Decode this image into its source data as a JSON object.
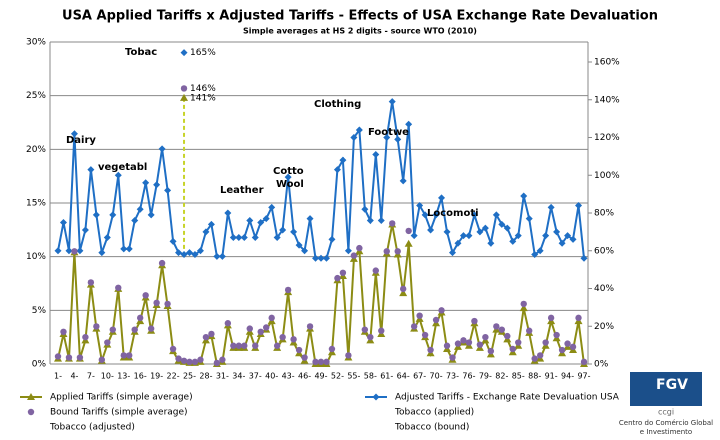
{
  "chart_data": {
    "type": "line",
    "title": "USA Applied Tariffs x Adjusted Tariffs - Effects of USA Exchange Rate Devaluation",
    "subtitle": "Simple averages at HS 2 digits  - source WTO (2010)",
    "categories": [
      "1-",
      null,
      null,
      "4-",
      null,
      null,
      "7-",
      null,
      null,
      "10-",
      null,
      null,
      "13-",
      null,
      null,
      "16-",
      null,
      null,
      "19-",
      null,
      null,
      "22-",
      null,
      null,
      "25-",
      null,
      null,
      "28-",
      null,
      null,
      "31-",
      null,
      null,
      "34-",
      null,
      null,
      "37-",
      null,
      null,
      "40-",
      null,
      null,
      "43-",
      null,
      null,
      "46-",
      null,
      null,
      "49-",
      null,
      null,
      "52-",
      null,
      null,
      "55-",
      null,
      null,
      "58-",
      null,
      null,
      "61-",
      null,
      null,
      "64-",
      null,
      null,
      "67-",
      null,
      null,
      "70-",
      null,
      null,
      "73-",
      null,
      null,
      "76-",
      null,
      null,
      "79-",
      null,
      null,
      "82-",
      null,
      null,
      "85-",
      null,
      null,
      "88-",
      null,
      null,
      "91-",
      null,
      null,
      "94-",
      null,
      null,
      "97-"
    ],
    "ylim": [
      0,
      30
    ],
    "yticks": [
      {
        "value": 0,
        "label": "0%"
      },
      {
        "value": 5,
        "label": "5%"
      },
      {
        "value": 10,
        "label": "10%"
      },
      {
        "value": 15,
        "label": "15%"
      },
      {
        "value": 20,
        "label": "20%"
      },
      {
        "value": 25,
        "label": "25%"
      },
      {
        "value": 30,
        "label": "30%"
      }
    ],
    "y2lim": [
      0,
      170.6
    ],
    "y2ticks": [
      {
        "value": 0,
        "label": "0%"
      },
      {
        "value": 20,
        "label": "20%"
      },
      {
        "value": 40,
        "label": "40%"
      },
      {
        "value": 60,
        "label": "60%"
      },
      {
        "value": 80,
        "label": "80%"
      },
      {
        "value": 100,
        "label": "100%"
      },
      {
        "value": 120,
        "label": "120%"
      },
      {
        "value": 140,
        "label": "140%"
      },
      {
        "value": 160,
        "label": "160%"
      }
    ],
    "grid": true,
    "legend": "bottom",
    "series": [
      {
        "name": "Applied Tariffs (simple average)",
        "color": "#8c8c14",
        "marker": "triangle",
        "line": true,
        "values": [
          0.5,
          2.8,
          0.5,
          10.4,
          0.5,
          2.2,
          7.4,
          3.3,
          0.3,
          1.8,
          3.0,
          7.0,
          0.6,
          0.6,
          3.0,
          4.0,
          6.2,
          3.1,
          5.5,
          9.2,
          5.4,
          1.2,
          0.3,
          0.2,
          0.1,
          0.1,
          0.2,
          2.2,
          2.6,
          0,
          0.2,
          3.6,
          1.5,
          1.5,
          1.5,
          3.0,
          1.5,
          2.8,
          3.2,
          4.0,
          1.5,
          2.3,
          6.7,
          2.0,
          1.0,
          0.3,
          3.3,
          0,
          0,
          0,
          1.1,
          7.8,
          8.2,
          0.6,
          9.8,
          10.5,
          3.0,
          2.2,
          8.5,
          2.8,
          10.3,
          13.0,
          10.2,
          6.6,
          11.2,
          3.3,
          4.2,
          2.5,
          1.0,
          3.8,
          4.8,
          1.4,
          0.4,
          1.6,
          2.0,
          1.7,
          3.8,
          1.5,
          2.2,
          0.9,
          3.2,
          3.0,
          2.3,
          1.1,
          1.7,
          5.2,
          2.9,
          0.3,
          0.5,
          1.7,
          4.0,
          2.4,
          1.0,
          1.6,
          1.3,
          4.0,
          0
        ]
      },
      {
        "name": "Adjusted Tariffs - Exchange Rate Devaluation USA",
        "color": "#1f6fc5",
        "marker": "diamond",
        "line": true,
        "axis": "y2",
        "values": [
          60,
          75,
          60,
          122,
          60,
          71,
          103,
          79,
          59,
          67,
          79,
          100,
          61,
          61,
          76,
          82,
          96,
          79,
          95,
          114,
          92,
          65,
          59,
          58,
          59,
          58,
          60,
          70,
          74,
          57,
          57,
          80,
          67,
          67,
          67,
          76,
          67,
          75,
          77,
          83,
          67,
          71,
          99,
          70,
          63,
          60,
          77,
          56,
          56,
          56,
          66,
          103,
          108,
          60,
          120,
          124,
          82,
          76,
          111,
          76,
          120,
          139,
          119,
          97,
          127,
          68,
          84,
          79,
          71,
          79,
          88,
          70,
          59,
          64,
          68,
          68,
          79,
          70,
          72,
          64,
          79,
          74,
          72,
          65,
          68,
          89,
          77,
          58,
          60,
          68,
          83,
          70,
          64,
          68,
          66,
          84,
          56
        ]
      },
      {
        "name": "Bound Tariffs (simple average)",
        "color": "#8064a2",
        "marker": "circle",
        "line": false,
        "values": [
          0.7,
          3.0,
          0.6,
          10.5,
          0.6,
          2.5,
          7.6,
          3.5,
          0.4,
          2.0,
          3.2,
          7.1,
          0.8,
          0.8,
          3.2,
          4.3,
          6.4,
          3.3,
          5.7,
          9.4,
          5.6,
          1.4,
          0.5,
          0.3,
          0.2,
          0.2,
          0.4,
          2.5,
          2.8,
          0.1,
          0.4,
          3.8,
          1.7,
          1.7,
          1.7,
          3.3,
          1.7,
          3.0,
          3.4,
          4.3,
          1.7,
          2.5,
          6.9,
          2.3,
          1.3,
          0.6,
          3.5,
          0.2,
          0.2,
          0.2,
          1.4,
          8.0,
          8.5,
          0.8,
          10.1,
          10.8,
          3.2,
          2.5,
          8.7,
          3.1,
          10.5,
          13.1,
          10.5,
          7.0,
          12.4,
          3.5,
          4.5,
          2.7,
          1.3,
          4.1,
          5.0,
          1.7,
          0.6,
          1.9,
          2.2,
          2.0,
          4.0,
          1.8,
          2.5,
          1.2,
          3.5,
          3.2,
          2.6,
          1.4,
          2.0,
          5.6,
          3.1,
          0.5,
          0.8,
          2.0,
          4.3,
          2.7,
          1.3,
          1.9,
          1.6,
          4.3,
          0.2
        ]
      },
      {
        "name": "Tobacco (applied)",
        "color": "#8c8c14",
        "marker": "triangle",
        "line": false,
        "axis": "y2",
        "values": [
          null,
          null,
          null,
          null,
          null,
          null,
          null,
          null,
          null,
          null,
          null,
          null,
          null,
          null,
          null,
          null,
          null,
          null,
          null,
          null,
          null,
          null,
          null,
          141,
          null,
          null,
          null,
          null,
          null,
          null,
          null,
          null,
          null,
          null,
          null,
          null,
          null,
          null,
          null,
          null,
          null,
          null,
          null,
          null,
          null,
          null,
          null,
          null,
          null,
          null,
          null,
          null,
          null,
          null,
          null,
          null,
          null,
          null,
          null,
          null,
          null,
          null,
          null,
          null,
          null,
          null,
          null,
          null,
          null,
          null,
          null,
          null,
          null,
          null,
          null,
          null,
          null,
          null,
          null,
          null,
          null,
          null,
          null,
          null,
          null,
          null,
          null,
          null,
          null,
          null,
          null,
          null,
          null,
          null,
          null,
          null,
          null
        ],
        "value_labels": [
          null,
          null,
          null,
          null,
          null,
          null,
          null,
          null,
          null,
          null,
          null,
          null,
          null,
          null,
          null,
          null,
          null,
          null,
          null,
          null,
          null,
          null,
          null,
          "141%",
          null,
          null,
          null,
          null,
          null,
          null,
          null,
          null,
          null,
          null,
          null,
          null,
          null,
          null,
          null,
          null,
          null,
          null,
          null,
          null,
          null,
          null,
          null,
          null,
          null,
          null,
          null,
          null,
          null,
          null,
          null,
          null,
          null,
          null,
          null,
          null,
          null,
          null,
          null,
          null,
          null,
          null,
          null,
          null,
          null,
          null,
          null,
          null,
          null,
          null,
          null,
          null,
          null,
          null,
          null,
          null,
          null,
          null,
          null,
          null,
          null,
          null,
          null,
          null,
          null,
          null,
          null,
          null,
          null,
          null,
          null,
          null,
          null
        ]
      },
      {
        "name": "Tobacco (adjusted)",
        "color": "#1f6fc5",
        "marker": "diamond",
        "line": false,
        "axis": "y2",
        "values": [
          null,
          null,
          null,
          null,
          null,
          null,
          null,
          null,
          null,
          null,
          null,
          null,
          null,
          null,
          null,
          null,
          null,
          null,
          null,
          null,
          null,
          null,
          null,
          165,
          null,
          null,
          null,
          null,
          null,
          null,
          null,
          null,
          null,
          null,
          null,
          null,
          null,
          null,
          null,
          null,
          null,
          null,
          null,
          null,
          null,
          null,
          null,
          null,
          null,
          null,
          null,
          null,
          null,
          null,
          null,
          null,
          null,
          null,
          null,
          null,
          null,
          null,
          null,
          null,
          null,
          null,
          null,
          null,
          null,
          null,
          null,
          null,
          null,
          null,
          null,
          null,
          null,
          null,
          null,
          null,
          null,
          null,
          null,
          null,
          null,
          null,
          null,
          null,
          null,
          null,
          null,
          null,
          null,
          null,
          null,
          null,
          null
        ],
        "value_labels": [
          null,
          null,
          null,
          null,
          null,
          null,
          null,
          null,
          null,
          null,
          null,
          null,
          null,
          null,
          null,
          null,
          null,
          null,
          null,
          null,
          null,
          null,
          null,
          "165%",
          null,
          null,
          null,
          null,
          null,
          null,
          null,
          null,
          null,
          null,
          null,
          null,
          null,
          null,
          null,
          null,
          null,
          null,
          null,
          null,
          null,
          null,
          null,
          null,
          null,
          null,
          null,
          null,
          null,
          null,
          null,
          null,
          null,
          null,
          null,
          null,
          null,
          null,
          null,
          null,
          null,
          null,
          null,
          null,
          null,
          null,
          null,
          null,
          null,
          null,
          null,
          null,
          null,
          null,
          null,
          null,
          null,
          null,
          null,
          null,
          null,
          null,
          null,
          null,
          null,
          null,
          null,
          null,
          null,
          null,
          null,
          null,
          null
        ]
      },
      {
        "name": "Tobacco (bound)",
        "color": "#8064a2",
        "marker": "circle",
        "line": false,
        "axis": "y2",
        "values": [
          null,
          null,
          null,
          null,
          null,
          null,
          null,
          null,
          null,
          null,
          null,
          null,
          null,
          null,
          null,
          null,
          null,
          null,
          null,
          null,
          null,
          null,
          null,
          146,
          null,
          null,
          null,
          null,
          null,
          null,
          null,
          null,
          null,
          null,
          null,
          null,
          null,
          null,
          null,
          null,
          null,
          null,
          null,
          null,
          null,
          null,
          null,
          null,
          null,
          null,
          null,
          null,
          null,
          null,
          null,
          null,
          null,
          null,
          null,
          null,
          null,
          null,
          null,
          null,
          null,
          null,
          null,
          null,
          null,
          null,
          null,
          null,
          null,
          null,
          null,
          null,
          null,
          null,
          null,
          null,
          null,
          null,
          null,
          null,
          null,
          null,
          null,
          null,
          null,
          null,
          null,
          null,
          null,
          null,
          null,
          null,
          null
        ],
        "value_labels": [
          null,
          null,
          null,
          null,
          null,
          null,
          null,
          null,
          null,
          null,
          null,
          null,
          null,
          null,
          null,
          null,
          null,
          null,
          null,
          null,
          null,
          null,
          null,
          "146%",
          null,
          null,
          null,
          null,
          null,
          null,
          null,
          null,
          null,
          null,
          null,
          null,
          null,
          null,
          null,
          null,
          null,
          null,
          null,
          null,
          null,
          null,
          null,
          null,
          null,
          null,
          null,
          null,
          null,
          null,
          null,
          null,
          null,
          null,
          null,
          null,
          null,
          null,
          null,
          null,
          null,
          null,
          null,
          null,
          null,
          null,
          null,
          null,
          null,
          null,
          null,
          null,
          null,
          null,
          null,
          null,
          null,
          null,
          null,
          null,
          null,
          null,
          null,
          null,
          null,
          null,
          null,
          null,
          null,
          null,
          null,
          null,
          null
        ]
      }
    ],
    "annotations": [
      "Tobac",
      "Dairy",
      "vegetabl",
      "Leather",
      "Cotto",
      "Wool",
      "Clothing",
      "Footwe",
      "Locomoti"
    ]
  },
  "logo": {
    "brand": "FGV",
    "unit": "ccgi",
    "lines": [
      "Centro do Comércio Global",
      "e Investimento"
    ]
  }
}
